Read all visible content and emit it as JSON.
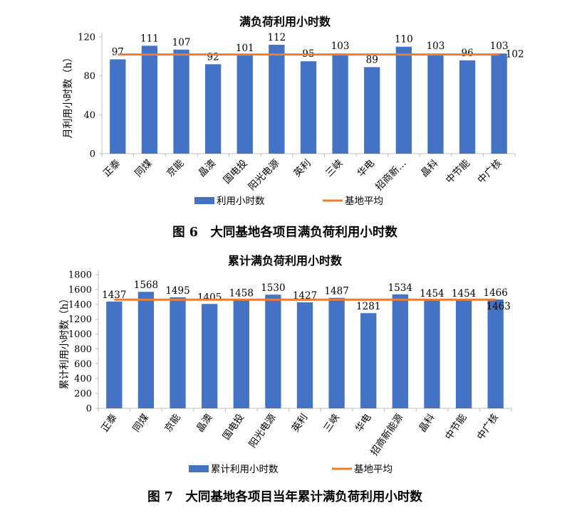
{
  "colors": {
    "bar": "#4472C4",
    "line": "#ED7D31",
    "axis": "#BFBFBF",
    "grid": "#D9D9D9"
  },
  "chart_data": [
    {
      "type": "bar",
      "title": "满负荷利用小时数",
      "ylabel": "月利用小时数（h）",
      "xlabel": "",
      "ylim": [
        0,
        120
      ],
      "yticks": [
        0,
        40,
        80,
        120
      ],
      "categories": [
        "正泰",
        "同煤",
        "京能",
        "晶澳",
        "国电投",
        "阳光电源",
        "英利",
        "三峡",
        "华电",
        "招商新…",
        "晶科",
        "中节能",
        "中广核"
      ],
      "series": [
        {
          "name": "利用小时数",
          "type": "bar",
          "values": [
            97,
            111,
            107,
            92,
            101,
            112,
            95,
            103,
            89,
            110,
            103,
            96,
            103
          ],
          "value_labels": [
            "97",
            "111",
            "107",
            "92",
            "101",
            "112",
            "95",
            "103",
            "89",
            "110",
            "103",
            "96",
            "103"
          ]
        },
        {
          "name": "基地平均",
          "type": "line",
          "value": 102,
          "value_label": "102"
        }
      ],
      "legend": "bottom",
      "grid": false
    },
    {
      "type": "bar",
      "title": "累计满负荷利用小时数",
      "ylabel": "累计利用小时数（h）",
      "xlabel": "",
      "ylim": [
        0,
        1800
      ],
      "yticks": [
        0,
        200,
        400,
        600,
        800,
        1000,
        1200,
        1400,
        1600,
        1800
      ],
      "categories": [
        "正泰",
        "同煤",
        "京能",
        "晶澳",
        "国电投",
        "阳光电源",
        "英利",
        "三峡",
        "华电",
        "招商新能源",
        "晶科",
        "中节能",
        "中广核"
      ],
      "series": [
        {
          "name": "累计利用小时数",
          "type": "bar",
          "values": [
            1437,
            1568,
            1495,
            1405,
            1458,
            1530,
            1427,
            1487,
            1281,
            1534,
            1454,
            1454,
            1466
          ],
          "value_labels": [
            "1437",
            "1568",
            "1495",
            "1405",
            "1458",
            "1530",
            "1427",
            "1487",
            "1281",
            "1534",
            "1454",
            "1454",
            "1466"
          ]
        },
        {
          "name": "基地平均",
          "type": "line",
          "value": 1463,
          "value_label": "1463"
        }
      ],
      "legend": "bottom",
      "grid": false
    }
  ],
  "captions": {
    "fig6": "图 6　大同基地各项目满负荷利用小时数",
    "fig7": "图 7　大同基地各项目当年累计满负荷利用小时数"
  }
}
